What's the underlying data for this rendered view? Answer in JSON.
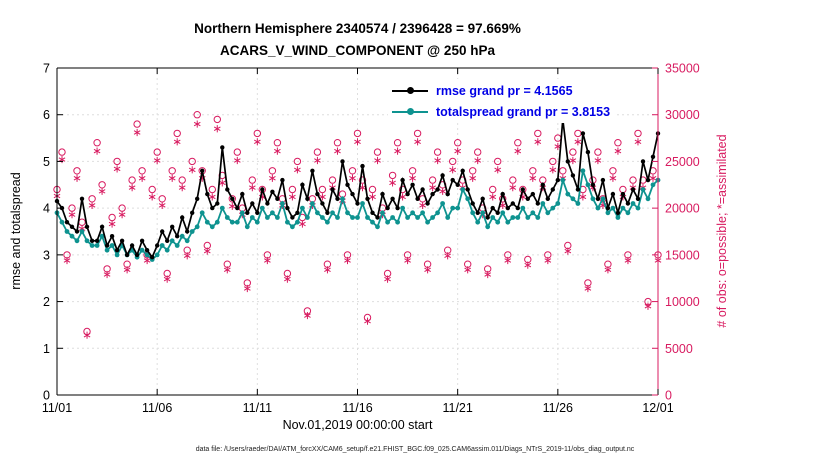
{
  "chart_data": {
    "type": "line",
    "title": "Northern Hemisphere 2340574 / 2396428 = 97.669%",
    "subtitle": "ACARS_V_WIND_COMPONENT @ 250 hPa",
    "xlabel": "Nov.01,2019 00:00:00 start",
    "ylabel_left": "rmse and totalspread",
    "ylabel_right": "# of obs: o=possible; *=assimilated",
    "caption": "data file: /Users/raeder/DAI/ATM_forcXX/CAM6_setup/f.e21.FHIST_BGC.f09_025.CAM6assim.011/Diags_NTrS_2019-11/obs_diag_output.nc",
    "ylim_left": [
      0,
      7
    ],
    "yticks_left": [
      0,
      1,
      2,
      3,
      4,
      5,
      6,
      7
    ],
    "ylim_right": [
      0,
      35000
    ],
    "yticks_right": [
      0,
      5000,
      10000,
      15000,
      20000,
      25000,
      30000,
      35000
    ],
    "xlim_days": [
      0,
      30
    ],
    "x_step_days": 0.25,
    "xticks": [
      {
        "day": 0,
        "label": "11/01"
      },
      {
        "day": 5,
        "label": "11/06"
      },
      {
        "day": 10,
        "label": "11/11"
      },
      {
        "day": 15,
        "label": "11/16"
      },
      {
        "day": 20,
        "label": "11/21"
      },
      {
        "day": 25,
        "label": "11/26"
      },
      {
        "day": 30,
        "label": "12/01"
      }
    ],
    "colors": {
      "rmse": "#000000",
      "totalspread": "#0e9390",
      "obs": "#d81b60",
      "legend_text": "#0000e6",
      "grid": "#dedede"
    },
    "legend": [
      {
        "label": "rmse grand pr = 4.1565",
        "color": "#000000"
      },
      {
        "label": "totalspread grand pr = 3.8153",
        "color": "#0e9390"
      }
    ],
    "series": [
      {
        "name": "rmse",
        "axis": "left",
        "marker": "dot",
        "values": [
          4.15,
          4.0,
          3.7,
          3.6,
          3.5,
          4.2,
          3.6,
          3.3,
          3.3,
          3.6,
          3.2,
          3.4,
          3.1,
          3.3,
          3.0,
          3.2,
          3.0,
          3.3,
          3.1,
          2.95,
          3.2,
          3.5,
          3.3,
          3.6,
          3.4,
          3.8,
          3.5,
          3.9,
          4.2,
          4.8,
          4.3,
          4.0,
          4.1,
          5.3,
          4.4,
          4.2,
          4.0,
          4.3,
          3.9,
          4.1,
          3.9,
          4.4,
          4.1,
          4.35,
          4.2,
          4.6,
          4.0,
          3.8,
          3.9,
          4.5,
          4.2,
          4.8,
          4.3,
          4.1,
          3.9,
          4.4,
          4.2,
          5.0,
          4.5,
          4.3,
          4.1,
          4.9,
          4.2,
          3.9,
          3.8,
          4.3,
          4.0,
          4.2,
          4.0,
          4.6,
          4.3,
          4.5,
          4.2,
          4.4,
          4.1,
          4.3,
          4.4,
          4.7,
          4.3,
          4.6,
          4.5,
          4.8,
          4.4,
          4.1,
          3.9,
          4.2,
          3.8,
          4.0,
          3.9,
          4.3,
          4.0,
          4.1,
          4.0,
          4.4,
          4.2,
          4.3,
          4.1,
          4.5,
          4.2,
          4.4,
          4.6,
          5.9,
          5.0,
          4.7,
          4.4,
          5.6,
          5.2,
          4.5,
          4.2,
          4.6,
          4.0,
          4.3,
          3.9,
          4.3,
          4.1,
          4.4,
          4.2,
          5.0,
          4.6,
          5.1,
          5.6
        ]
      },
      {
        "name": "totalspread",
        "axis": "left",
        "marker": "dot",
        "values": [
          3.9,
          3.7,
          3.5,
          3.4,
          3.3,
          3.5,
          3.3,
          3.2,
          3.2,
          3.4,
          3.1,
          3.2,
          3.0,
          3.2,
          3.0,
          3.1,
          2.95,
          3.1,
          3.0,
          2.9,
          3.0,
          3.2,
          3.1,
          3.3,
          3.2,
          3.4,
          3.3,
          3.5,
          3.6,
          3.9,
          3.7,
          3.6,
          3.7,
          4.0,
          3.8,
          3.7,
          3.7,
          3.9,
          3.6,
          3.8,
          3.7,
          4.0,
          3.8,
          3.9,
          3.8,
          4.1,
          3.7,
          3.6,
          3.7,
          4.0,
          3.8,
          4.1,
          3.9,
          3.8,
          3.7,
          3.9,
          3.8,
          4.2,
          3.9,
          3.8,
          3.8,
          4.1,
          3.8,
          3.7,
          3.6,
          3.9,
          3.7,
          3.8,
          3.7,
          4.0,
          3.8,
          3.9,
          3.8,
          3.9,
          3.7,
          3.8,
          3.9,
          4.1,
          3.8,
          4.0,
          4.0,
          4.4,
          4.2,
          3.9,
          3.7,
          3.9,
          3.6,
          3.8,
          3.7,
          3.9,
          3.7,
          3.8,
          3.8,
          4.0,
          3.8,
          3.9,
          3.8,
          4.1,
          3.9,
          4.0,
          4.1,
          4.6,
          4.3,
          4.2,
          4.1,
          4.8,
          4.5,
          4.2,
          4.0,
          4.2,
          3.9,
          4.0,
          3.8,
          4.0,
          3.9,
          4.1,
          4.0,
          4.4,
          4.2,
          4.5,
          4.6
        ]
      },
      {
        "name": "possible",
        "axis": "right",
        "marker": "circle",
        "values": [
          22000,
          26000,
          15000,
          20000,
          24000,
          18500,
          6800,
          21000,
          27000,
          22500,
          13500,
          19000,
          25000,
          20000,
          14000,
          23000,
          29000,
          24000,
          15000,
          22000,
          26000,
          21000,
          13000,
          24000,
          28000,
          23000,
          15500,
          25000,
          30000,
          24000,
          16000,
          22000,
          29500,
          23500,
          14000,
          21000,
          26000,
          20000,
          12000,
          23000,
          28000,
          22000,
          15000,
          24000,
          27000,
          21000,
          13000,
          22000,
          25000,
          19000,
          9000,
          21000,
          26000,
          22000,
          14000,
          23000,
          27000,
          21500,
          15000,
          24000,
          28000,
          23000,
          8300,
          22000,
          26000,
          20000,
          13000,
          23500,
          27000,
          22000,
          15000,
          24000,
          28000,
          21000,
          14000,
          23000,
          26000,
          22500,
          15500,
          25000,
          27000,
          23000,
          14000,
          24000,
          26000,
          20000,
          13500,
          22000,
          25000,
          21000,
          15000,
          23000,
          27000,
          22000,
          14500,
          24000,
          28000,
          23000,
          15000,
          25000,
          27500,
          24000,
          16000,
          26000,
          28000,
          22000,
          12000,
          23000,
          26000,
          21000,
          14000,
          24000,
          27000,
          22000,
          15000,
          23000,
          28000,
          23000,
          10000,
          24000,
          15000
        ]
      },
      {
        "name": "assimilated",
        "axis": "right",
        "marker": "asterisk",
        "values": [
          21300,
          25200,
          14400,
          19300,
          23200,
          17800,
          6400,
          20300,
          26100,
          21800,
          12900,
          18300,
          24200,
          19300,
          13400,
          22200,
          28100,
          23200,
          14400,
          21200,
          25100,
          20300,
          12400,
          23200,
          27100,
          22200,
          14900,
          24100,
          29000,
          23200,
          15400,
          21200,
          28500,
          22700,
          13400,
          20200,
          25100,
          19300,
          11400,
          22200,
          27100,
          21200,
          14400,
          23200,
          26100,
          20300,
          12400,
          21200,
          24100,
          18300,
          8500,
          20300,
          25100,
          21200,
          13400,
          22200,
          26100,
          20800,
          14400,
          23200,
          27100,
          22200,
          7900,
          21200,
          25100,
          19300,
          12400,
          22700,
          26100,
          21200,
          14400,
          23200,
          27100,
          20300,
          13400,
          22200,
          25100,
          21800,
          14900,
          24100,
          26100,
          22200,
          13400,
          23200,
          25100,
          19300,
          12900,
          21200,
          24100,
          20300,
          14400,
          22200,
          26100,
          21200,
          13900,
          23200,
          27100,
          22200,
          14400,
          24100,
          26600,
          23200,
          15400,
          25100,
          27100,
          21200,
          11400,
          22200,
          25100,
          20300,
          13400,
          23200,
          26100,
          21200,
          14400,
          22200,
          27100,
          22200,
          9500,
          23200,
          14400
        ]
      }
    ]
  }
}
